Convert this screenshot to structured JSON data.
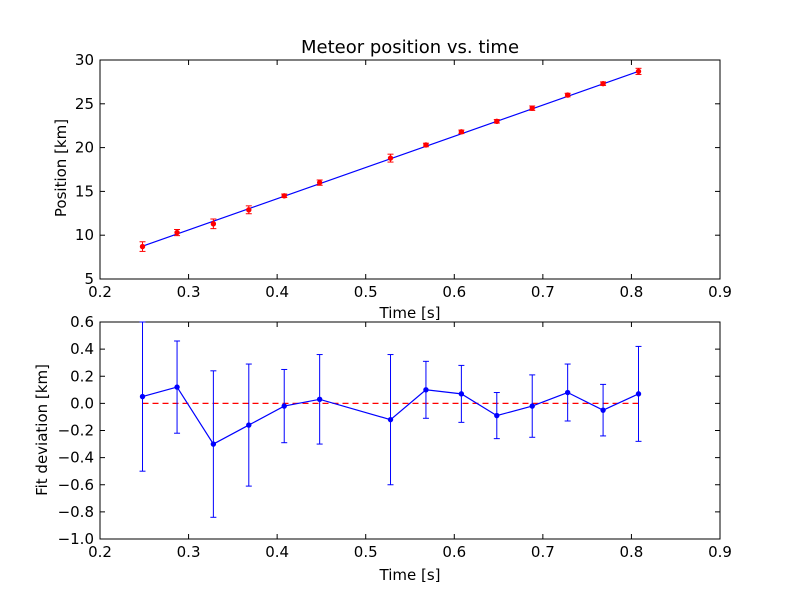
{
  "chart_data": [
    {
      "type": "line",
      "title": "Meteor position vs. time",
      "xlabel": "Time [s]",
      "ylabel": "Position [km]",
      "xlim": [
        0.2,
        0.9
      ],
      "ylim": [
        5,
        30
      ],
      "xticks": [
        "0.2",
        "0.3",
        "0.4",
        "0.5",
        "0.6",
        "0.7",
        "0.8",
        "0.9"
      ],
      "yticks": [
        "5",
        "10",
        "15",
        "20",
        "25",
        "30"
      ],
      "grid": false,
      "colors": {
        "fit": "#0000ff",
        "data": "#ff0000"
      },
      "fit_line": {
        "x": [
          0.248,
          0.808
        ],
        "y": [
          8.75,
          28.7
        ]
      },
      "series": [
        {
          "x": [
            0.248,
            0.287,
            0.328,
            0.368,
            0.408,
            0.448,
            0.528,
            0.568,
            0.608,
            0.648,
            0.688,
            0.728,
            0.768,
            0.808
          ],
          "y": [
            8.7,
            10.3,
            11.3,
            12.9,
            14.5,
            16.0,
            18.8,
            20.3,
            21.8,
            23.0,
            24.5,
            26.0,
            27.3,
            28.7
          ],
          "err": [
            0.55,
            0.35,
            0.55,
            0.45,
            0.2,
            0.3,
            0.45,
            0.2,
            0.2,
            0.2,
            0.25,
            0.2,
            0.2,
            0.35
          ]
        }
      ]
    },
    {
      "type": "line",
      "title": "",
      "xlabel": "Time [s]",
      "ylabel": "Fit deviation [km]",
      "xlim": [
        0.2,
        0.9
      ],
      "ylim": [
        -1.0,
        0.6
      ],
      "xticks": [
        "0.2",
        "0.3",
        "0.4",
        "0.5",
        "0.6",
        "0.7",
        "0.8",
        "0.9"
      ],
      "yticks": [
        "−1.0",
        "−0.8",
        "−0.6",
        "−0.4",
        "−0.2",
        "0.0",
        "0.2",
        "0.4",
        "0.6"
      ],
      "grid": false,
      "colors": {
        "series": "#0000ff",
        "zero_line": "#ff0000"
      },
      "zero_line": {
        "y": 0.0,
        "x": [
          0.248,
          0.808
        ]
      },
      "series": [
        {
          "x": [
            0.248,
            0.287,
            0.328,
            0.368,
            0.408,
            0.448,
            0.528,
            0.568,
            0.608,
            0.648,
            0.688,
            0.728,
            0.768,
            0.808
          ],
          "y": [
            0.05,
            0.12,
            -0.3,
            -0.16,
            -0.02,
            0.03,
            -0.12,
            0.1,
            0.07,
            -0.09,
            -0.02,
            0.08,
            -0.05,
            0.07
          ],
          "err": [
            0.55,
            0.34,
            0.54,
            0.45,
            0.27,
            0.33,
            0.48,
            0.21,
            0.21,
            0.17,
            0.23,
            0.21,
            0.19,
            0.35
          ]
        }
      ]
    }
  ]
}
